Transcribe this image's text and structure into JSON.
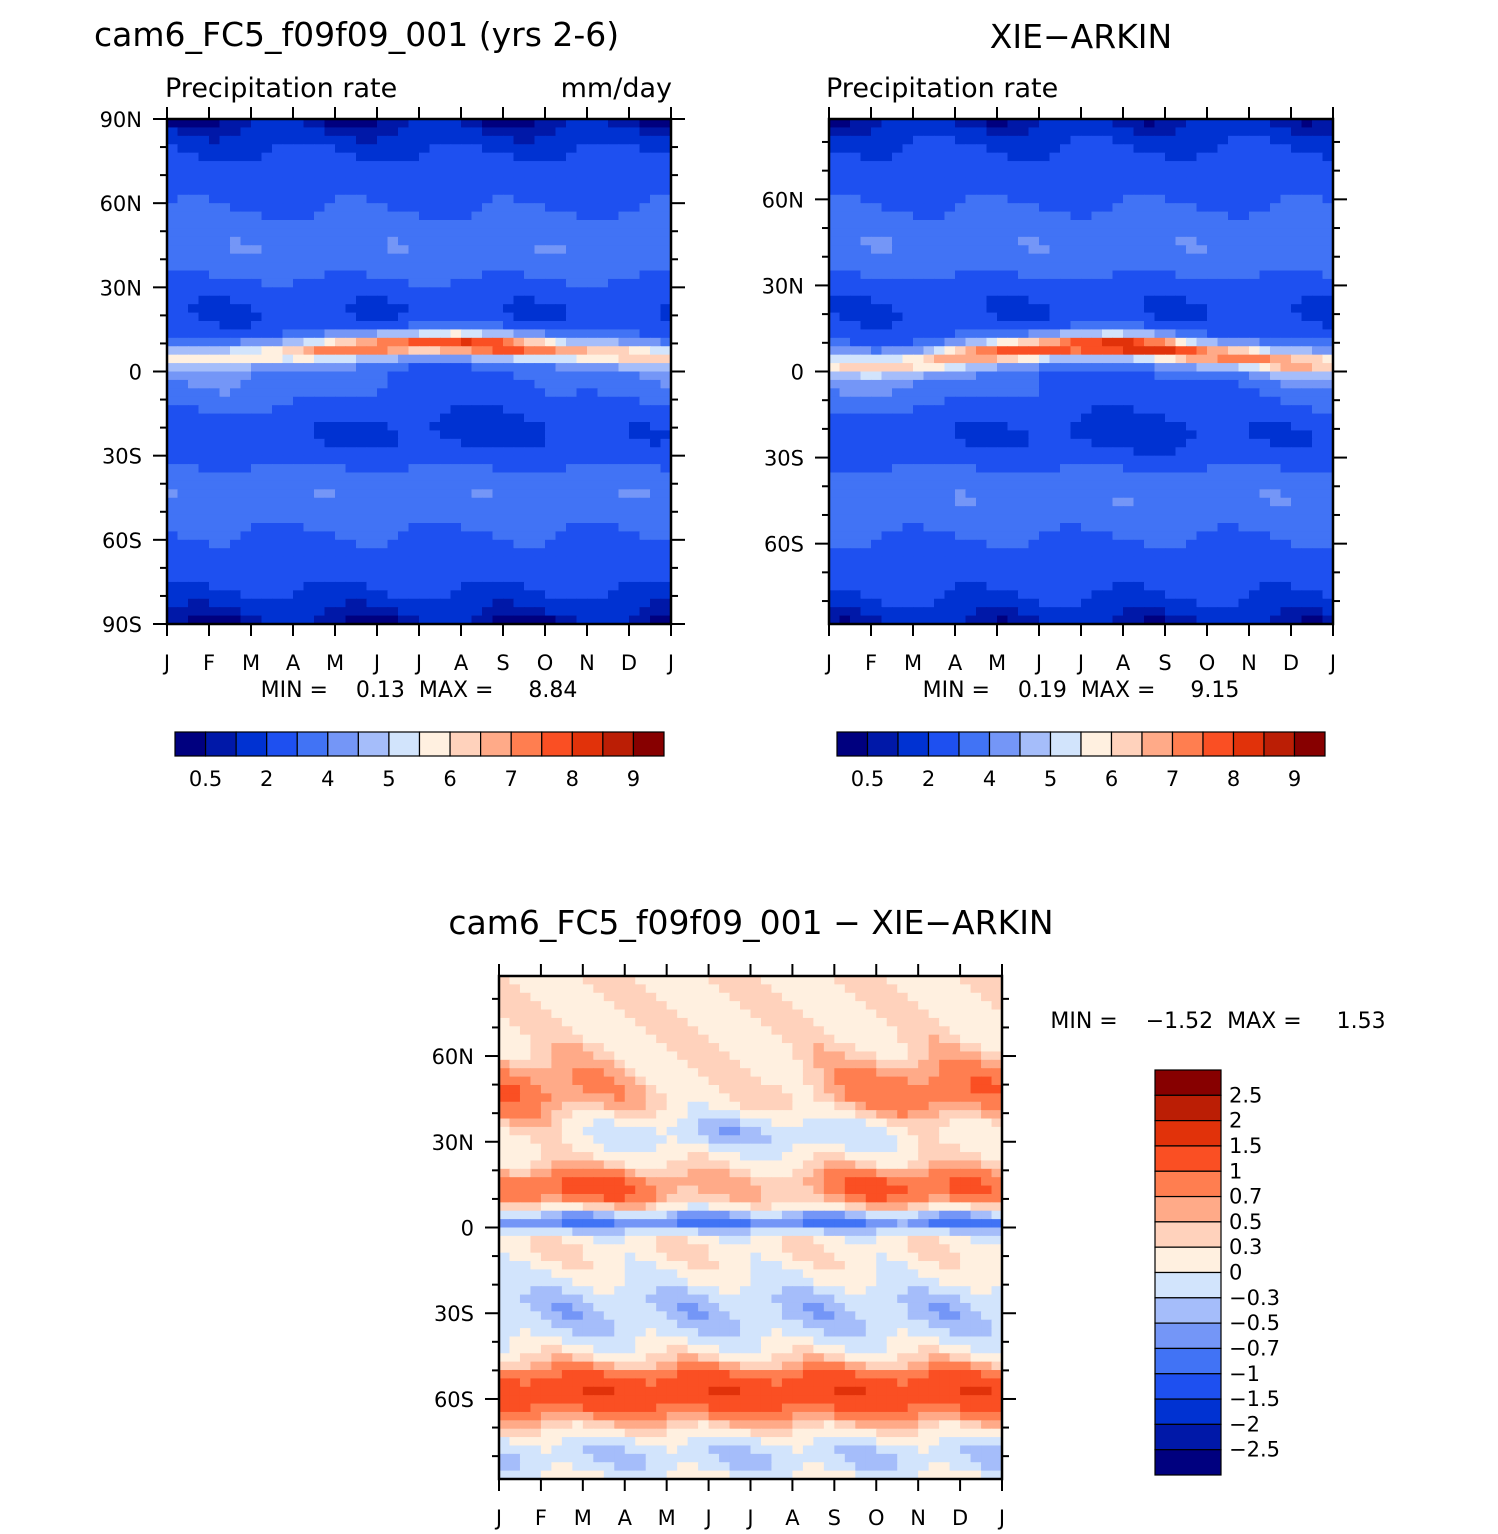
{
  "chart_data": [
    {
      "type": "heatmap",
      "title": "cam6_FC5_f09f09_001 (yrs 2-6)",
      "variable_label": "Precipitation rate",
      "units_label": "mm/day",
      "stats_text": "MIN =    0.13  MAX =     8.84",
      "x_ticks": [
        "J",
        "F",
        "M",
        "A",
        "M",
        "J",
        "J",
        "A",
        "S",
        "O",
        "N",
        "D",
        "J"
      ],
      "y_ticks": [
        {
          "label": "90N",
          "lat": 90
        },
        {
          "label": "60N",
          "lat": 60
        },
        {
          "label": "30N",
          "lat": 30
        },
        {
          "label": "0",
          "lat": 0
        },
        {
          "label": "30S",
          "lat": -30
        },
        {
          "label": "60S",
          "lat": -60
        },
        {
          "label": "90S",
          "lat": -90
        }
      ],
      "ylim": [
        -90,
        90
      ],
      "colorbar_labels": [
        "0.5",
        "2",
        "4",
        "5",
        "6",
        "7",
        "8",
        "9"
      ],
      "itcz_peak": 8.84,
      "itcz_lat_by_month": [
        5,
        5,
        6,
        7,
        8,
        9,
        10,
        10,
        9,
        8,
        7,
        6,
        5
      ]
    },
    {
      "type": "heatmap",
      "title": "XIE−ARKIN",
      "variable_label": "Precipitation rate",
      "stats_text": "MIN =    0.19  MAX =     9.15",
      "x_ticks": [
        "J",
        "F",
        "M",
        "A",
        "M",
        "J",
        "J",
        "A",
        "S",
        "O",
        "N",
        "D",
        "J"
      ],
      "y_ticks": [
        {
          "label": "60N",
          "lat": 60
        },
        {
          "label": "30N",
          "lat": 30
        },
        {
          "label": "0",
          "lat": 0
        },
        {
          "label": "30S",
          "lat": -30
        },
        {
          "label": "60S",
          "lat": -60
        }
      ],
      "ylim": [
        -88,
        88
      ],
      "colorbar_labels": [
        "0.5",
        "2",
        "4",
        "5",
        "6",
        "7",
        "8",
        "9"
      ],
      "itcz_peak": 9.15,
      "itcz_lat_by_month": [
        3,
        2,
        3,
        5,
        7,
        8,
        9,
        9,
        8,
        6,
        5,
        3,
        3
      ]
    },
    {
      "type": "heatmap",
      "title": "cam6_FC5_f09f09_001 − XIE−ARKIN",
      "stats_text": "MIN =    −1.52  MAX =     1.53",
      "x_ticks": [
        "J",
        "F",
        "M",
        "A",
        "M",
        "J",
        "J",
        "A",
        "S",
        "O",
        "N",
        "D",
        "J"
      ],
      "y_ticks": [
        {
          "label": "60N",
          "lat": 60
        },
        {
          "label": "30N",
          "lat": 30
        },
        {
          "label": "0",
          "lat": 0
        },
        {
          "label": "30S",
          "lat": -30
        },
        {
          "label": "60S",
          "lat": -60
        }
      ],
      "ylim": [
        -88,
        88
      ],
      "colorbar_labels": [
        "2.5",
        "2",
        "1.5",
        "1",
        "0.7",
        "0.5",
        "0.3",
        "0",
        "−0.3",
        "−0.5",
        "−0.7",
        "−1",
        "−1.5",
        "−2",
        "−2.5"
      ]
    }
  ],
  "colors": {
    "seq": [
      "#00007f",
      "#0018a8",
      "#0032d2",
      "#1e50f0",
      "#4173f5",
      "#7496f7",
      "#a5bdfa",
      "#d2e4fc",
      "#fff0e0",
      "#ffd2bc",
      "#ffaa88",
      "#ff7e50",
      "#fa4f23",
      "#e1320a",
      "#bb1e05",
      "#870000"
    ],
    "div": [
      "#870000",
      "#bb1e05",
      "#e1320a",
      "#fa4f23",
      "#ff7e50",
      "#ffaa88",
      "#ffd2bc",
      "#fff0e0",
      "#d2e4fc",
      "#a5bdfa",
      "#7496f7",
      "#4173f5",
      "#1e50f0",
      "#0032d2",
      "#0018a8",
      "#00007f"
    ]
  }
}
